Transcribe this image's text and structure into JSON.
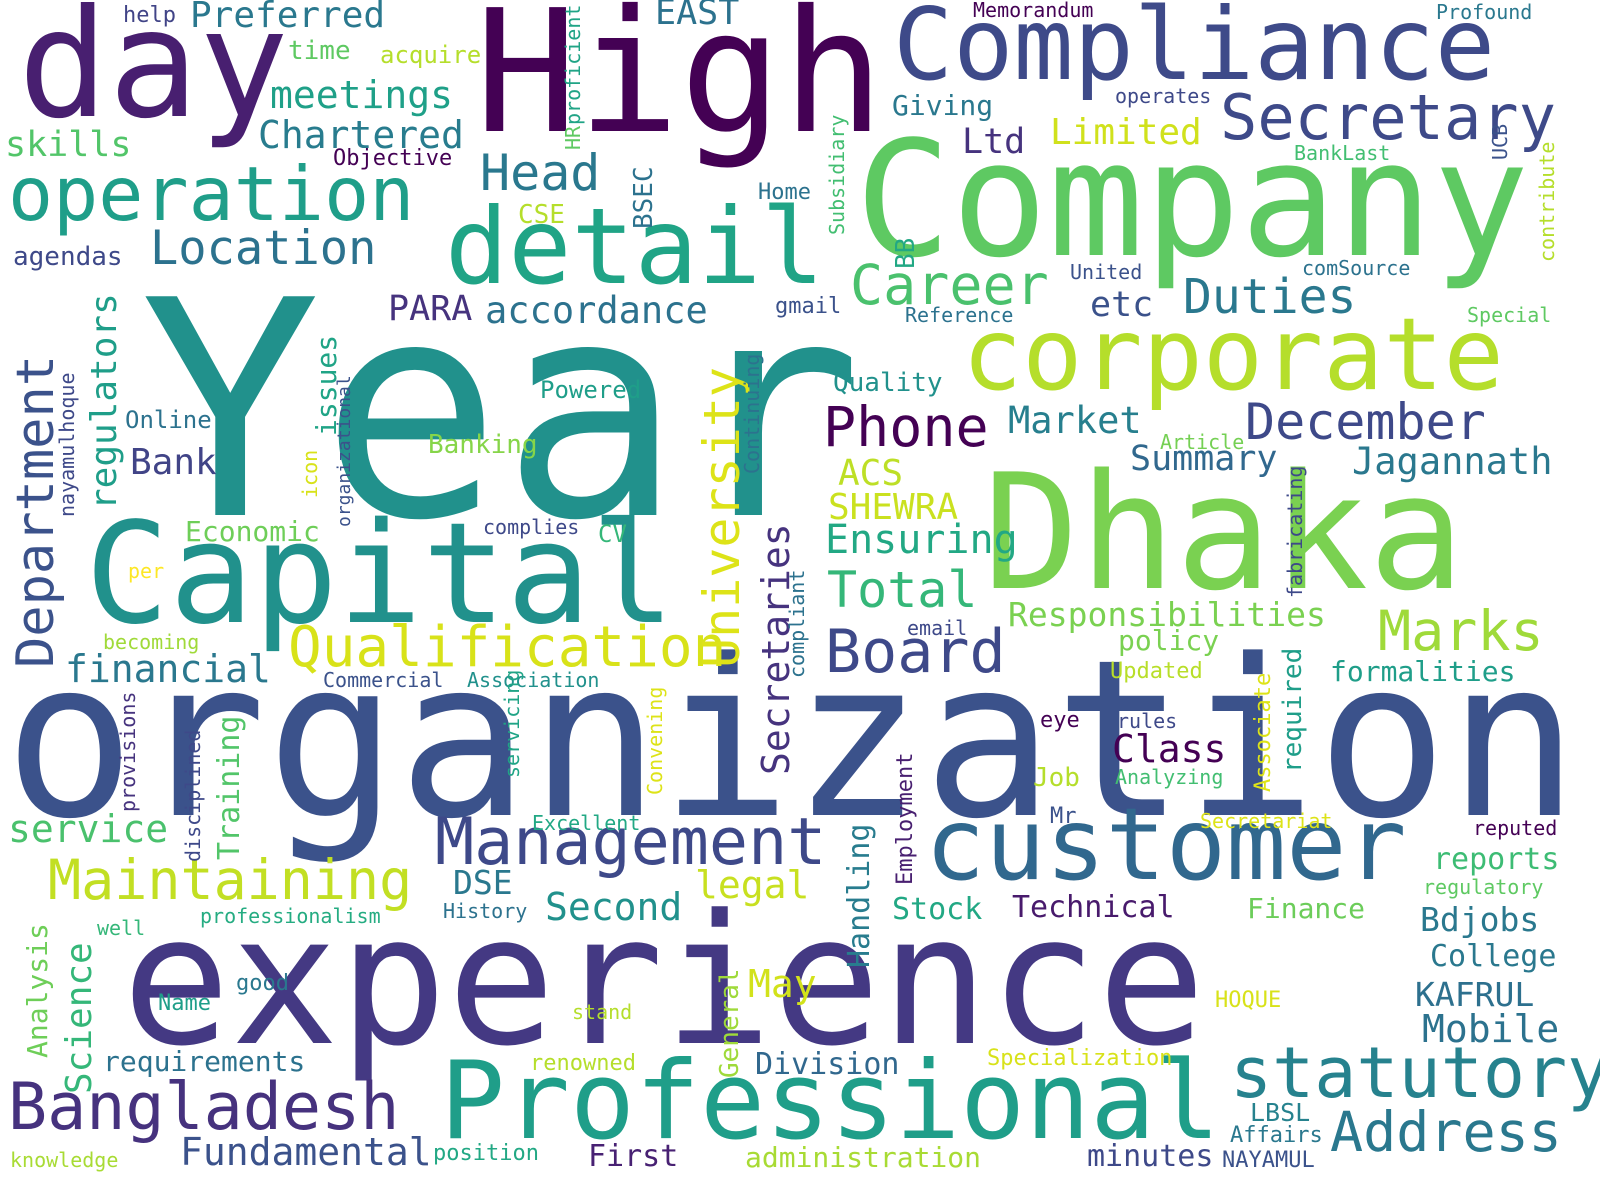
{
  "words": [
    {
      "text": "Year",
      "color": "#21918c"
    },
    {
      "text": "organization",
      "color": "#3b528b"
    },
    {
      "text": "experience",
      "color": "#443983"
    },
    {
      "text": "Company",
      "color": "#5ec962"
    },
    {
      "text": "High",
      "color": "#440154"
    },
    {
      "text": "Dhaka",
      "color": "#7ad151"
    },
    {
      "text": "Capital",
      "color": "#21918c"
    },
    {
      "text": "day",
      "color": "#481f70"
    },
    {
      "text": "Compliance",
      "color": "#3e4a89"
    },
    {
      "text": "corporate",
      "color": "#b5de2b"
    },
    {
      "text": "Professional",
      "color": "#1f9e89"
    },
    {
      "text": "customer",
      "color": "#31688e"
    },
    {
      "text": "detail",
      "color": "#20a486"
    },
    {
      "text": "operation",
      "color": "#1f9e89"
    },
    {
      "text": "Management",
      "color": "#3e4989"
    },
    {
      "text": "Secretary",
      "color": "#3e4a89"
    },
    {
      "text": "statutory",
      "color": "#26828e"
    },
    {
      "text": "Bangladesh",
      "color": "#46327e"
    },
    {
      "text": "Maintaining",
      "color": "#c2df23"
    },
    {
      "text": "Qualification",
      "color": "#d8e219"
    },
    {
      "text": "Address",
      "color": "#2a788e"
    },
    {
      "text": "Board",
      "color": "#3e4989"
    },
    {
      "text": "Career",
      "color": "#4ac16d"
    },
    {
      "text": "Phone",
      "color": "#440154"
    },
    {
      "text": "December",
      "color": "#3e4989"
    },
    {
      "text": "Marks",
      "color": "#9fda3a"
    },
    {
      "text": "Location",
      "color": "#2c728e"
    },
    {
      "text": "Head",
      "color": "#2a788e"
    },
    {
      "text": "Duties",
      "color": "#2a788e"
    },
    {
      "text": "Total",
      "color": "#35b779"
    },
    {
      "text": "Responsibilities",
      "color": "#7ad151"
    },
    {
      "text": "Ensuring",
      "color": "#22a884"
    },
    {
      "text": "Jagannath",
      "color": "#2a788e"
    },
    {
      "text": "Summary",
      "color": "#31688e"
    },
    {
      "text": "accordance",
      "color": "#2c728e"
    },
    {
      "text": "financial",
      "color": "#2a788e"
    },
    {
      "text": "meetings",
      "color": "#1fa088"
    },
    {
      "text": "Chartered",
      "color": "#287c8e"
    },
    {
      "text": "Preferred",
      "color": "#2a788e"
    },
    {
      "text": "Market",
      "color": "#277f8e"
    },
    {
      "text": "Bank",
      "color": "#414487"
    },
    {
      "text": "Second",
      "color": "#21918c"
    },
    {
      "text": "Mobile",
      "color": "#2c728e"
    },
    {
      "text": "Class",
      "color": "#440154"
    },
    {
      "text": "legal",
      "color": "#c8e020"
    },
    {
      "text": "service",
      "color": "#4ac16d"
    },
    {
      "text": "DSE",
      "color": "#2a788e"
    },
    {
      "text": "Fundamental",
      "color": "#3b528b"
    },
    {
      "text": "ACS",
      "color": "#bddf26"
    },
    {
      "text": "SHEWRA",
      "color": "#cae11f"
    },
    {
      "text": "Limited",
      "color": "#d0e11c"
    },
    {
      "text": "EAST",
      "color": "#2c728e"
    },
    {
      "text": "Ltd",
      "color": "#46337e"
    },
    {
      "text": "etc",
      "color": "#3b528b"
    },
    {
      "text": "PARA",
      "color": "#46337e"
    },
    {
      "text": "skills",
      "color": "#52c569"
    },
    {
      "text": "May",
      "color": "#d2e21b"
    },
    {
      "text": "KAFRUL",
      "color": "#2d708e"
    },
    {
      "text": "Bdjobs",
      "color": "#2a788e"
    },
    {
      "text": "College",
      "color": "#2a788e"
    },
    {
      "text": "requirements",
      "color": "#2c728e"
    },
    {
      "text": "formalities",
      "color": "#1f9e89"
    },
    {
      "text": "Division",
      "color": "#31688e"
    },
    {
      "text": "Technical",
      "color": "#481a6c"
    },
    {
      "text": "Stock",
      "color": "#22a884"
    },
    {
      "text": "reports",
      "color": "#3dbc74"
    },
    {
      "text": "Finance",
      "color": "#6ccd5a"
    },
    {
      "text": "minutes",
      "color": "#3e4989"
    },
    {
      "text": "First",
      "color": "#482173"
    },
    {
      "text": "administration",
      "color": "#a8db34"
    },
    {
      "text": "LBSL",
      "color": "#26828e"
    },
    {
      "text": "Affairs",
      "color": "#2a788e"
    },
    {
      "text": "NAYAMUL",
      "color": "#3b528b"
    },
    {
      "text": "Economic",
      "color": "#6ece58"
    },
    {
      "text": "Online",
      "color": "#2c728e"
    },
    {
      "text": "agendas",
      "color": "#3e4989"
    },
    {
      "text": "time",
      "color": "#5ec962"
    },
    {
      "text": "help",
      "color": "#414487"
    },
    {
      "text": "acquire",
      "color": "#b5de2b"
    },
    {
      "text": "Objective",
      "color": "#440154"
    },
    {
      "text": "Giving",
      "color": "#2a788e"
    },
    {
      "text": "Memorandum",
      "color": "#440154"
    },
    {
      "text": "Profound",
      "color": "#2a788e"
    },
    {
      "text": "operates",
      "color": "#3e4989"
    },
    {
      "text": "BankLast",
      "color": "#42be71"
    },
    {
      "text": "Home",
      "color": "#2c728e"
    },
    {
      "text": "CSE",
      "color": "#b5de2b"
    },
    {
      "text": "United",
      "color": "#3b528b"
    },
    {
      "text": "comSource",
      "color": "#2c728e"
    },
    {
      "text": "Reference",
      "color": "#2c728e"
    },
    {
      "text": "Special",
      "color": "#5ec962"
    },
    {
      "text": "gmail",
      "color": "#3b528b"
    },
    {
      "text": "Quality",
      "color": "#21918c"
    },
    {
      "text": "Powered",
      "color": "#1f9e89"
    },
    {
      "text": "Banking",
      "color": "#86d549"
    },
    {
      "text": "Article",
      "color": "#75d054"
    },
    {
      "text": "complies",
      "color": "#3e4989"
    },
    {
      "text": "CV",
      "color": "#35b779"
    },
    {
      "text": "per",
      "color": "#fde725"
    },
    {
      "text": "becoming",
      "color": "#a0da39"
    },
    {
      "text": "email",
      "color": "#3e4989"
    },
    {
      "text": "policy",
      "color": "#7ad151"
    },
    {
      "text": "Updated",
      "color": "#b8de29"
    },
    {
      "text": "Commercial",
      "color": "#3b528b"
    },
    {
      "text": "Association",
      "color": "#21918c"
    },
    {
      "text": "rules",
      "color": "#3e4989"
    },
    {
      "text": "eye",
      "color": "#440154"
    },
    {
      "text": "Analyzing",
      "color": "#42be71"
    },
    {
      "text": "Job",
      "color": "#b5de2b"
    },
    {
      "text": "Mr",
      "color": "#3b528b"
    },
    {
      "text": "Excellent",
      "color": "#22a884"
    },
    {
      "text": "Secretariat",
      "color": "#dde318"
    },
    {
      "text": "reputed",
      "color": "#440154"
    },
    {
      "text": "regulatory",
      "color": "#5ec962"
    },
    {
      "text": "History",
      "color": "#2c728e"
    },
    {
      "text": "professionalism",
      "color": "#25ac82"
    },
    {
      "text": "well",
      "color": "#35b779"
    },
    {
      "text": "good",
      "color": "#2a788e"
    },
    {
      "text": "Name",
      "color": "#1f9e89"
    },
    {
      "text": "stand",
      "color": "#b5de2b"
    },
    {
      "text": "HOQUE",
      "color": "#d8e219"
    },
    {
      "text": "renowned",
      "color": "#b5de2b"
    },
    {
      "text": "Specialization",
      "color": "#d8e219"
    },
    {
      "text": "position",
      "color": "#22a884"
    },
    {
      "text": "knowledge",
      "color": "#a8db34"
    },
    {
      "text": "Department",
      "color": "#3b528b"
    },
    {
      "text": "University",
      "color": "#dde318"
    },
    {
      "text": "Secretaries",
      "color": "#46337e"
    },
    {
      "text": "regulators",
      "color": "#1f9e89"
    },
    {
      "text": "Science",
      "color": "#35b779"
    },
    {
      "text": "Analysis",
      "color": "#6ece58"
    },
    {
      "text": "Training",
      "color": "#52c569"
    },
    {
      "text": "issues",
      "color": "#20a486"
    },
    {
      "text": "BSEC",
      "color": "#2c728e"
    },
    {
      "text": "Handling",
      "color": "#287c8e"
    },
    {
      "text": "General",
      "color": "#9fda3a"
    },
    {
      "text": "Employment",
      "color": "#481f70"
    },
    {
      "text": "required",
      "color": "#1f9e89"
    },
    {
      "text": "Associate",
      "color": "#dde318"
    },
    {
      "text": "fabricating",
      "color": "#3e4989"
    },
    {
      "text": "BB",
      "color": "#22a884"
    },
    {
      "text": "Continuing",
      "color": "#2c728e"
    },
    {
      "text": "compliant",
      "color": "#2c728e"
    },
    {
      "text": "Convening",
      "color": "#dde318"
    },
    {
      "text": "servicing",
      "color": "#20a486"
    },
    {
      "text": "disciplined",
      "color": "#3e4989"
    },
    {
      "text": "provisions",
      "color": "#46337e"
    },
    {
      "text": "nayamulhoque",
      "color": "#3e4989"
    },
    {
      "text": "organizational",
      "color": "#3b528b"
    },
    {
      "text": "icon",
      "color": "#d8e219"
    },
    {
      "text": "proficient",
      "color": "#20a486"
    },
    {
      "text": "HR",
      "color": "#5ec962"
    },
    {
      "text": "Subsidiary",
      "color": "#42be71"
    },
    {
      "text": "UCB",
      "color": "#3b528b"
    },
    {
      "text": "contribute",
      "color": "#b5de2b"
    },
    {
      "text": "organization",
      "color": "#3e4989"
    }
  ]
}
